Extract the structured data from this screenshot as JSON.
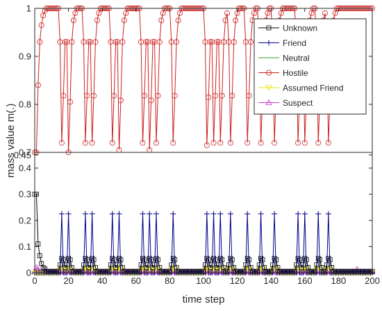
{
  "chart_data": {
    "type": "line",
    "xlabel": "time step",
    "ylabel": "mass value m(.)",
    "xlim": [
      0,
      200
    ],
    "ylim": [
      0,
      1
    ],
    "axis_break": [
      0.46,
      0.7
    ],
    "xticks": [
      0,
      20,
      40,
      60,
      80,
      100,
      120,
      140,
      160,
      180,
      200
    ],
    "xtick_labels": [
      "0",
      "20",
      "40",
      "60",
      "80",
      "100",
      "120",
      "140",
      "160",
      "180",
      "200"
    ],
    "yticks": [
      0,
      0.1,
      0.2,
      0.3,
      0.4,
      0.45,
      0.7,
      0.8,
      0.9,
      1
    ],
    "ytick_labels": [
      "0",
      "0.1",
      "0.2",
      "0.3",
      "0.4",
      "0.45",
      "0.7",
      "0.8",
      "0.9",
      "1"
    ],
    "legend_position": "top-right",
    "grid": false,
    "event_steps": [
      16,
      20,
      30,
      34,
      46,
      50,
      64,
      68,
      72,
      82,
      102,
      106,
      110,
      116,
      126,
      134,
      142,
      156,
      160,
      168,
      174
    ],
    "event_depth": {
      "16": 0.72,
      "20": 0.7,
      "30": 0.72,
      "34": 0.72,
      "46": 0.72,
      "50": 0.705,
      "64": 0.72,
      "68": 0.705,
      "72": 0.72,
      "82": 0.72,
      "102": 0.715,
      "106": 0.72,
      "110": 0.72,
      "116": 0.72,
      "126": 0.72,
      "134": 0.72,
      "142": 0.72,
      "156": 0.72,
      "160": 0.72,
      "168": 0.72,
      "174": 0.72
    },
    "series": [
      {
        "name": "Unknown",
        "color": "#000000",
        "marker": "square",
        "initial": [
          [
            1,
            0.3
          ],
          [
            2,
            0.11
          ],
          [
            3,
            0.065
          ],
          [
            4,
            0.035
          ],
          [
            5,
            0.02
          ],
          [
            6,
            0.015
          ]
        ],
        "baseline": 0.005,
        "event_value": 0.055,
        "event_offsets": [
          -1,
          0,
          1,
          2
        ],
        "event_shape": [
          0.03,
          0.055,
          0.05,
          0.02
        ]
      },
      {
        "name": "Friend",
        "color": "#00008b",
        "marker": "plus",
        "baseline": 0.0,
        "event_value": 0.225,
        "event_offsets": [
          -1,
          0,
          1
        ],
        "event_shape": [
          0.0,
          0.225,
          0.0
        ]
      },
      {
        "name": "Neutral",
        "color": "#22aa22",
        "marker": "none",
        "baseline": 0.0,
        "event_value": 0.0
      },
      {
        "name": "Hostile",
        "color": "#cc1f1f",
        "marker": "circle",
        "initial": [
          [
            1,
            0.7
          ],
          [
            2,
            0.84
          ],
          [
            3,
            0.93
          ],
          [
            4,
            0.965
          ],
          [
            5,
            0.985
          ],
          [
            6,
            0.995
          ]
        ],
        "baseline": 1.0
      },
      {
        "name": "Assumed Friend",
        "color": "#e6e600",
        "marker": "triangle-down",
        "baseline": 0.0,
        "event_value": 0.02,
        "event_offsets": [
          -1,
          0,
          1,
          2
        ],
        "event_shape": [
          0.01,
          0.02,
          0.015,
          0.005
        ]
      },
      {
        "name": "Suspect",
        "color": "#cc33cc",
        "marker": "triangle-up",
        "baseline": 0.003,
        "event_value": 0.012,
        "extra_points": [
          [
            1,
            0.02
          ],
          [
            2,
            0.012
          ],
          [
            101,
            0.012
          ],
          [
            191,
            0.013
          ]
        ]
      }
    ]
  }
}
